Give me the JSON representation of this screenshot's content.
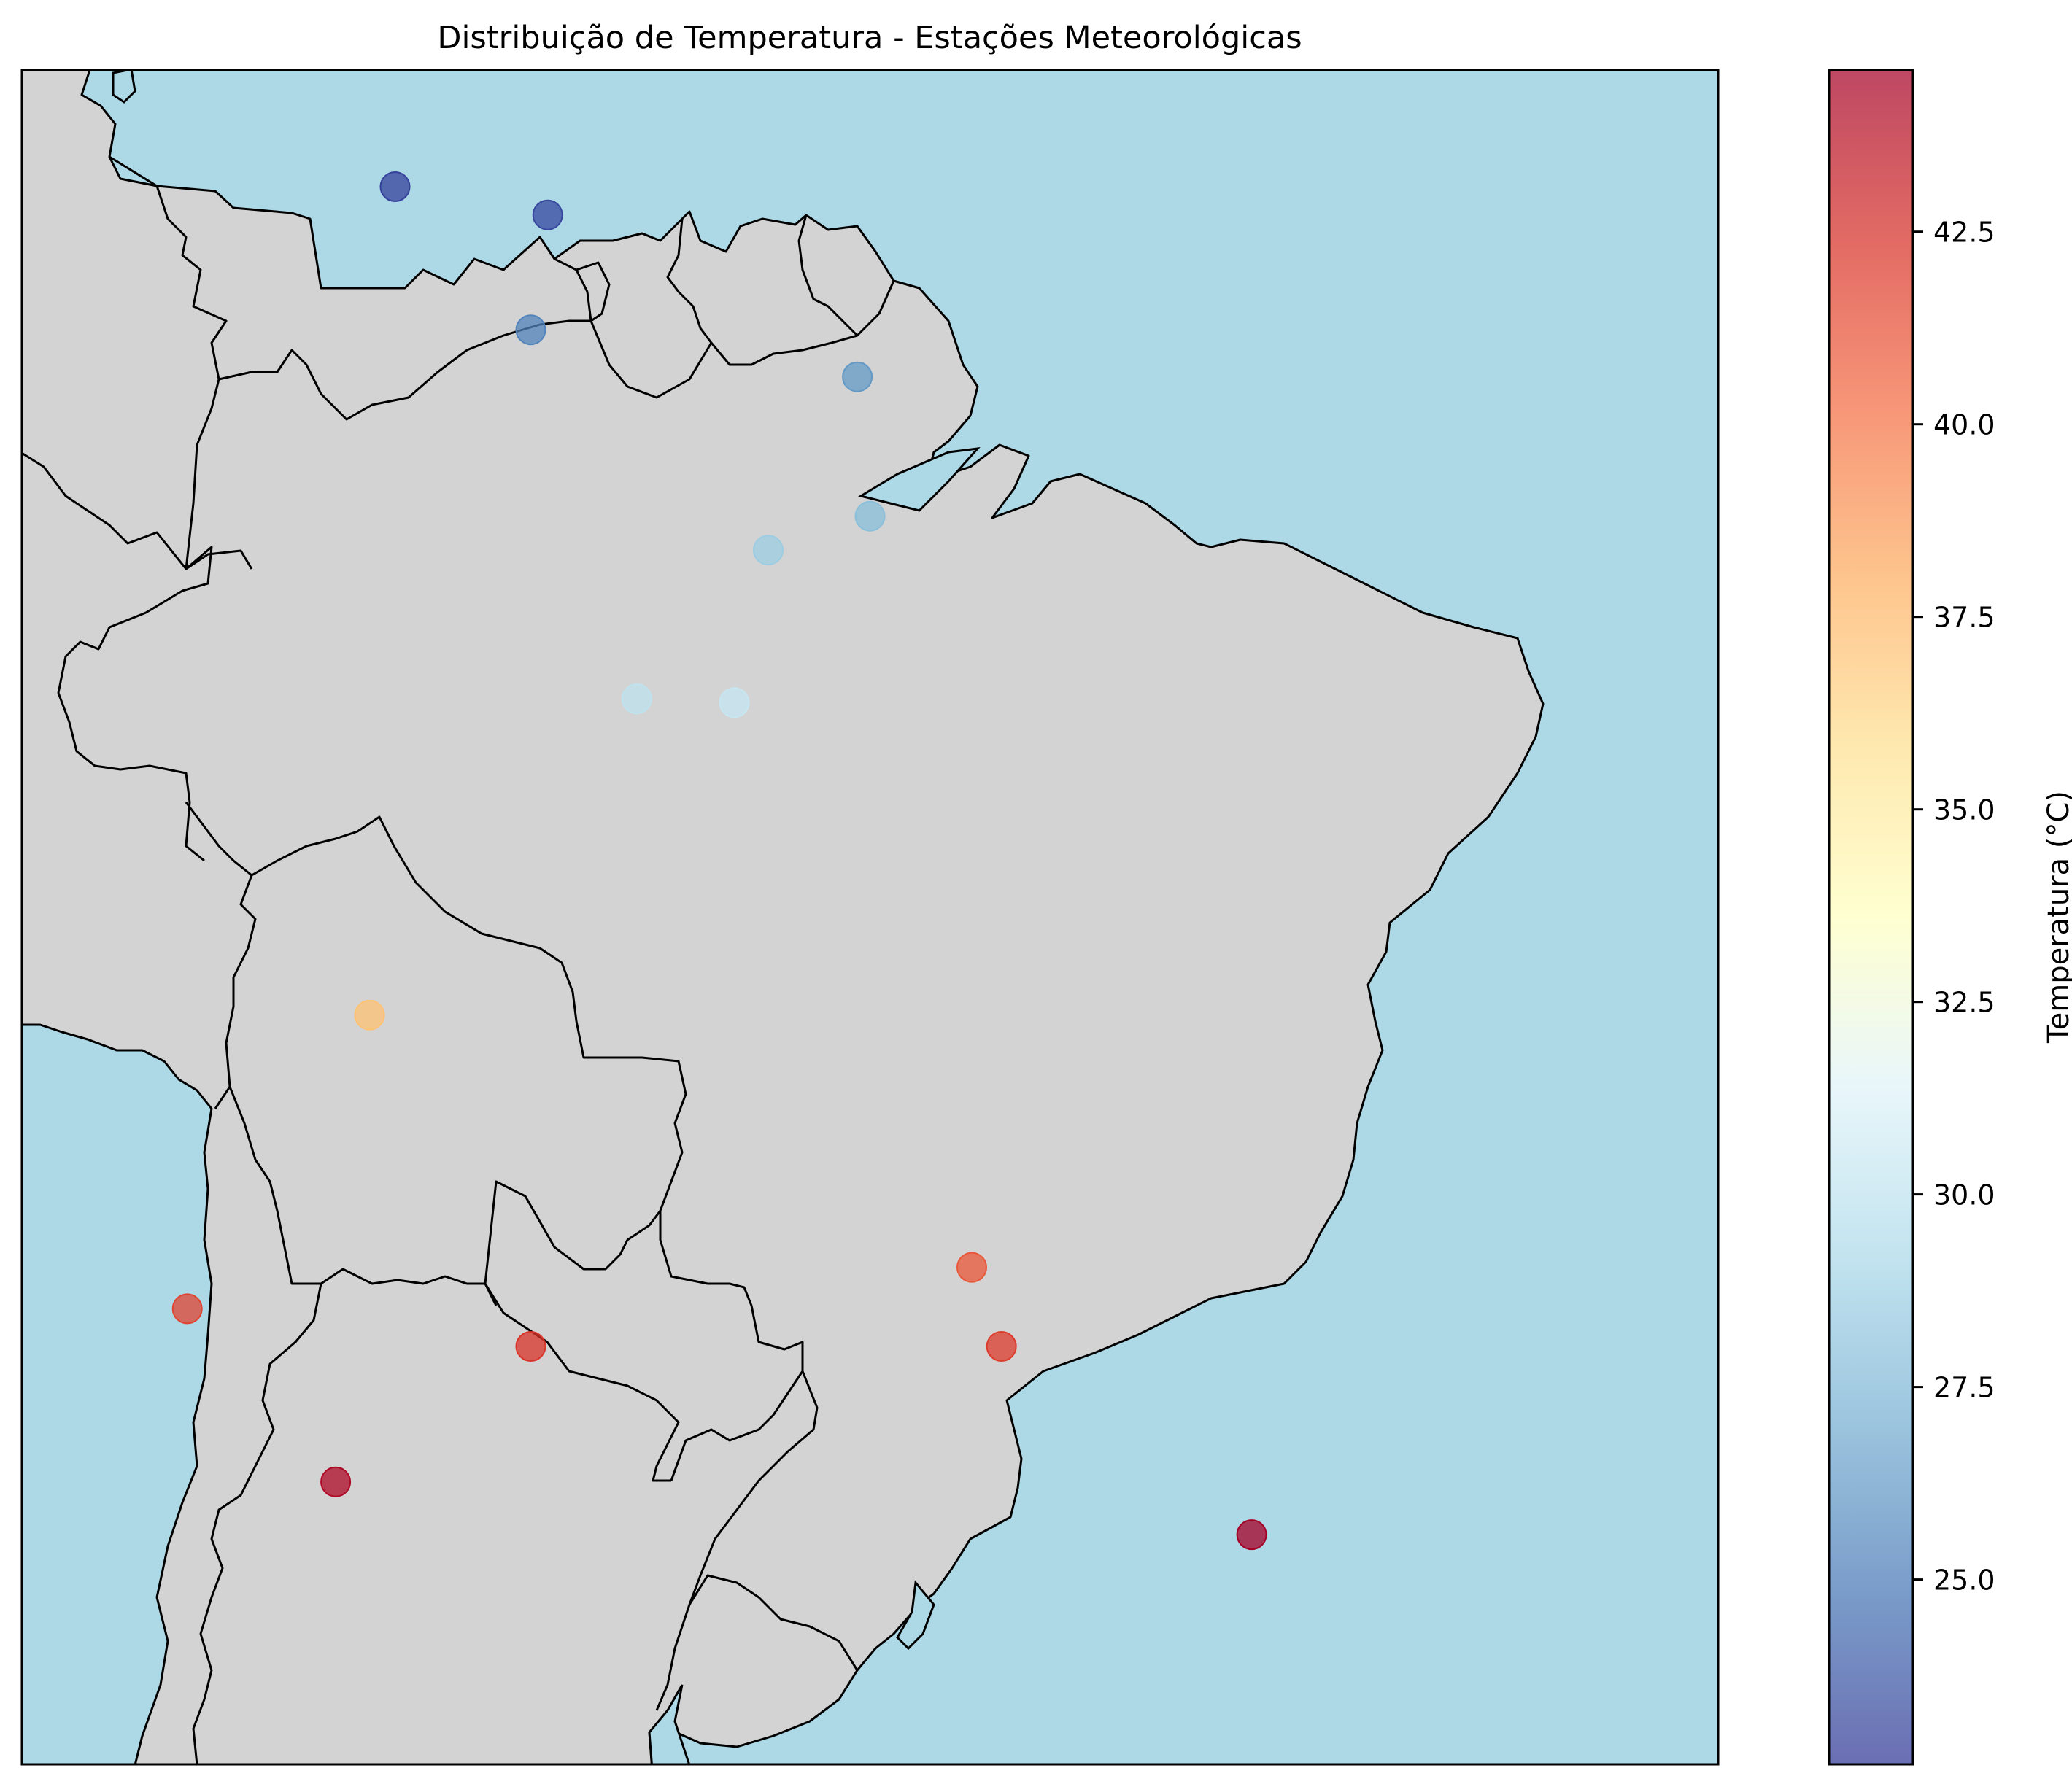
{
  "chart_data": {
    "type": "scatter",
    "title": "Distribuição de Temperatura - Estações Meteorológicas",
    "xlabel": "",
    "ylabel": "",
    "projection": "PlateCarree",
    "extent": {
      "lon": [
        -75,
        -35
      ],
      "lat": [
        -40,
        5
      ]
    },
    "background": {
      "ocean": "#add8e6",
      "land": "#d3d3d3",
      "borders": "#000000"
    },
    "colormap": "RdYlBu_r",
    "colorbar": {
      "label": "Temperatura (°C)",
      "range": [
        22.6,
        44.6
      ],
      "ticks": [
        "25.0",
        "27.5",
        "30.0",
        "32.5",
        "35.0",
        "37.5",
        "40.0",
        "42.5"
      ],
      "placement": "right"
    },
    "points": [
      {
        "lon": -66.2,
        "lat": 1.9,
        "temp": 23.0
      },
      {
        "lon": -62.6,
        "lat": 1.15,
        "temp": 23.2
      },
      {
        "lon": -63.0,
        "lat": -1.9,
        "temp": 25.4
      },
      {
        "lon": -55.3,
        "lat": -3.15,
        "temp": 26.2
      },
      {
        "lon": -55.0,
        "lat": -6.85,
        "temp": 27.9
      },
      {
        "lon": -57.4,
        "lat": -7.75,
        "temp": 28.6
      },
      {
        "lon": -60.5,
        "lat": -11.7,
        "temp": 30.0
      },
      {
        "lon": -58.2,
        "lat": -11.8,
        "temp": 30.3
      },
      {
        "lon": -66.8,
        "lat": -20.1,
        "temp": 37.1
      },
      {
        "lon": -71.1,
        "lat": -27.9,
        "temp": 41.7
      },
      {
        "lon": -63.0,
        "lat": -28.9,
        "temp": 42.3
      },
      {
        "lon": -52.6,
        "lat": -26.8,
        "temp": 41.0
      },
      {
        "lon": -51.9,
        "lat": -28.9,
        "temp": 42.0
      },
      {
        "lon": -67.6,
        "lat": -32.5,
        "temp": 44.2
      },
      {
        "lon": -46.0,
        "lat": -33.9,
        "temp": 44.6
      }
    ]
  }
}
